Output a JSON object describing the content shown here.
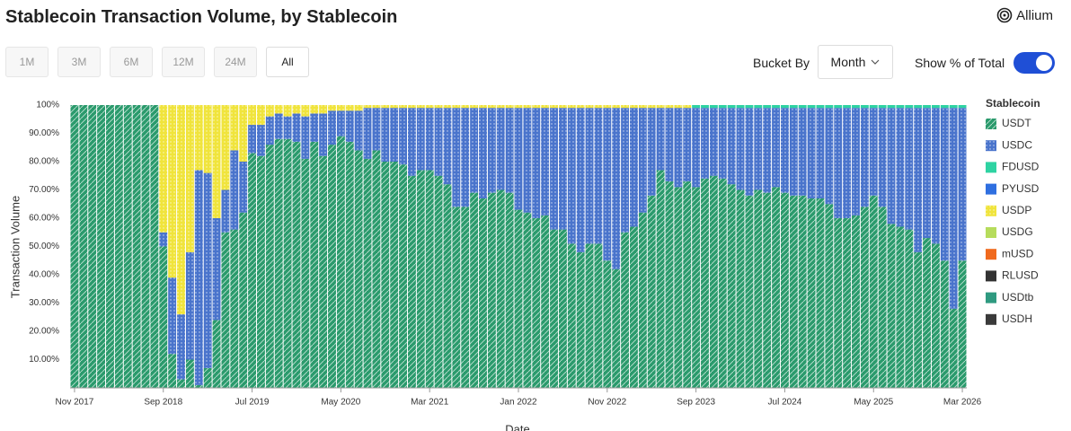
{
  "ui": {
    "title": "Stablecoin Transaction Volume, by Stablecoin",
    "brand": "Allium",
    "ranges": [
      {
        "label": "1M",
        "selected": false
      },
      {
        "label": "3M",
        "selected": false
      },
      {
        "label": "6M",
        "selected": false
      },
      {
        "label": "12M",
        "selected": false
      },
      {
        "label": "24M",
        "selected": false
      },
      {
        "label": "All",
        "selected": true
      }
    ],
    "bucket_label": "Bucket By",
    "bucket_value": "Month",
    "toggle_label": "Show % of Total",
    "toggle_on": true
  },
  "chart_data": {
    "type": "stacked_bar",
    "xlabel": "Date",
    "ylabel": "Transaction Volume",
    "legend_title": "Stablecoin",
    "legend": "right",
    "categories": [
      "Nov 2017",
      null,
      null,
      null,
      null,
      null,
      null,
      null,
      null,
      null,
      "Sep 2018",
      null,
      null,
      null,
      null,
      null,
      null,
      null,
      null,
      null,
      "Jul 2019",
      null,
      null,
      null,
      null,
      null,
      null,
      null,
      null,
      null,
      "May 2020",
      null,
      null,
      null,
      null,
      null,
      null,
      null,
      null,
      null,
      "Mar 2021",
      null,
      null,
      null,
      null,
      null,
      null,
      null,
      null,
      null,
      "Jan 2022",
      null,
      null,
      null,
      null,
      null,
      null,
      null,
      null,
      null,
      "Nov 2022",
      null,
      null,
      null,
      null,
      null,
      null,
      null,
      null,
      null,
      "Sep 2023",
      null,
      null,
      null,
      null,
      null,
      null,
      null,
      null,
      null,
      "Jul 2024",
      null,
      null,
      null,
      null,
      null,
      null,
      null,
      null,
      null,
      "May 2025",
      null,
      null,
      null,
      null,
      null,
      null,
      null,
      null,
      null,
      "Mar 2026"
    ],
    "ylim": [
      0,
      100
    ],
    "yticks": [
      {
        "value": 10,
        "label": "10.00%"
      },
      {
        "value": 20,
        "label": "20.00%"
      },
      {
        "value": 30,
        "label": "30.00%"
      },
      {
        "value": 40,
        "label": "40.00%"
      },
      {
        "value": 50,
        "label": "50.00%"
      },
      {
        "value": 60,
        "label": "60.00%"
      },
      {
        "value": 70,
        "label": "70.00%"
      },
      {
        "value": 80,
        "label": "80.00%"
      },
      {
        "value": 90,
        "label": "90.00%"
      },
      {
        "value": 100,
        "label": "100%"
      }
    ],
    "series": [
      {
        "name": "USDT",
        "color": "#2a9a6c",
        "values": [
          100,
          100,
          100,
          100,
          100,
          100,
          100,
          100,
          100,
          100,
          50,
          12,
          3,
          10,
          1,
          7,
          24,
          55,
          56,
          62,
          83,
          82,
          86,
          88,
          88,
          87,
          81,
          87,
          82,
          86,
          89,
          87,
          84,
          81,
          84,
          80,
          80,
          79,
          75,
          77,
          77,
          75,
          72,
          64,
          64,
          69,
          67,
          69,
          70,
          69,
          63,
          62,
          60,
          61,
          56,
          56,
          51,
          48,
          51,
          51,
          45,
          42,
          55,
          57,
          62,
          68,
          77,
          73,
          71,
          73,
          71,
          74,
          75,
          74,
          72,
          70,
          68,
          70,
          69,
          71,
          69,
          68,
          68,
          67,
          67,
          65,
          60,
          60,
          61,
          64,
          68,
          64,
          58,
          57,
          56,
          48,
          53,
          51,
          45,
          28,
          45
        ]
      },
      {
        "name": "USDC",
        "color": "#4a74cc",
        "values": [
          0,
          0,
          0,
          0,
          0,
          0,
          0,
          0,
          0,
          0,
          5,
          27,
          23,
          38,
          76,
          69,
          36,
          15,
          28,
          18,
          10,
          11,
          10,
          9,
          8,
          10,
          15,
          10,
          15,
          12,
          9,
          11,
          14,
          18,
          15,
          19,
          19,
          20,
          24,
          22,
          22,
          24,
          27,
          35,
          35,
          30,
          32,
          30,
          29,
          30,
          36,
          37,
          39,
          38,
          43,
          43,
          48,
          51,
          48,
          48,
          54,
          57,
          44,
          42,
          37,
          31,
          22,
          26,
          28,
          26,
          28,
          25,
          24,
          25,
          27,
          29,
          31,
          29,
          30,
          28,
          30,
          31,
          31,
          32,
          32,
          34,
          39,
          39,
          38,
          35,
          31,
          35,
          41,
          42,
          43,
          51,
          46,
          48,
          54,
          71,
          54
        ]
      },
      {
        "name": "FDUSD",
        "color": "#2ed3a2",
        "values": [
          0,
          0,
          0,
          0,
          0,
          0,
          0,
          0,
          0,
          0,
          0,
          0,
          0,
          0,
          0,
          0,
          0,
          0,
          0,
          0,
          0,
          0,
          0,
          0,
          0,
          0,
          0,
          0,
          0,
          0,
          0,
          0,
          0,
          0,
          0,
          0,
          0,
          0,
          0,
          0,
          0,
          0,
          0,
          0,
          0,
          0,
          0,
          0,
          0,
          0,
          0,
          0,
          0,
          0,
          0,
          0,
          0,
          0,
          0,
          0,
          0,
          0,
          0,
          0,
          0,
          0,
          0,
          0,
          0,
          0,
          1,
          1,
          1,
          1,
          1,
          1,
          1,
          1,
          1,
          1,
          1,
          1,
          1,
          1,
          1,
          1,
          1,
          1,
          1,
          1,
          1,
          1,
          1,
          1,
          1,
          1,
          1,
          1,
          1,
          1,
          1
        ]
      },
      {
        "name": "PYUSD",
        "color": "#2f6fe0",
        "values": [
          0,
          0,
          0,
          0,
          0,
          0,
          0,
          0,
          0,
          0,
          0,
          0,
          0,
          0,
          0,
          0,
          0,
          0,
          0,
          0,
          0,
          0,
          0,
          0,
          0,
          0,
          0,
          0,
          0,
          0,
          0,
          0,
          0,
          0,
          0,
          0,
          0,
          0,
          0,
          0,
          0,
          0,
          0,
          0,
          0,
          0,
          0,
          0,
          0,
          0,
          0,
          0,
          0,
          0,
          0,
          0,
          0,
          0,
          0,
          0,
          0,
          0,
          0,
          0,
          0,
          0,
          0,
          0,
          0,
          0,
          0,
          0,
          0,
          0,
          0,
          0,
          0,
          0,
          0,
          0,
          0,
          0,
          0,
          0,
          0,
          0,
          0,
          0,
          0,
          0,
          0,
          0,
          0,
          0,
          0,
          0,
          0,
          0,
          0,
          0,
          0
        ]
      },
      {
        "name": "USDP",
        "color": "#f0e43c",
        "values": [
          0,
          0,
          0,
          0,
          0,
          0,
          0,
          0,
          0,
          0,
          45,
          61,
          74,
          52,
          23,
          24,
          40,
          30,
          16,
          20,
          7,
          7,
          4,
          3,
          4,
          3,
          4,
          3,
          3,
          2,
          2,
          2,
          2,
          1,
          1,
          1,
          1,
          1,
          1,
          1,
          1,
          1,
          1,
          1,
          1,
          1,
          1,
          1,
          1,
          1,
          1,
          1,
          1,
          1,
          1,
          1,
          1,
          1,
          1,
          1,
          1,
          1,
          1,
          1,
          1,
          1,
          1,
          1,
          1,
          1,
          0,
          0,
          0,
          0,
          0,
          0,
          0,
          0,
          0,
          0,
          0,
          0,
          0,
          0,
          0,
          0,
          0,
          0,
          0,
          0,
          0,
          0,
          0,
          0,
          0,
          0,
          0,
          0,
          0,
          0,
          0
        ]
      },
      {
        "name": "USDG",
        "color": "#b6dc5c",
        "values": [
          0,
          0,
          0,
          0,
          0,
          0,
          0,
          0,
          0,
          0,
          0,
          0,
          0,
          0,
          0,
          0,
          0,
          0,
          0,
          0,
          0,
          0,
          0,
          0,
          0,
          0,
          0,
          0,
          0,
          0,
          0,
          0,
          0,
          0,
          0,
          0,
          0,
          0,
          0,
          0,
          0,
          0,
          0,
          0,
          0,
          0,
          0,
          0,
          0,
          0,
          0,
          0,
          0,
          0,
          0,
          0,
          0,
          0,
          0,
          0,
          0,
          0,
          0,
          0,
          0,
          0,
          0,
          0,
          0,
          0,
          0,
          0,
          0,
          0,
          0,
          0,
          0,
          0,
          0,
          0,
          0,
          0,
          0,
          0,
          0,
          0,
          0,
          0,
          0,
          0,
          0,
          0,
          0,
          0,
          0,
          0,
          0,
          0,
          0,
          0,
          0
        ]
      },
      {
        "name": "mUSD",
        "color": "#f06a1e",
        "values": [
          0,
          0,
          0,
          0,
          0,
          0,
          0,
          0,
          0,
          0,
          0,
          0,
          0,
          0,
          0,
          0,
          0,
          0,
          0,
          0,
          0,
          0,
          0,
          0,
          0,
          0,
          0,
          0,
          0,
          0,
          0,
          0,
          0,
          0,
          0,
          0,
          0,
          0,
          0,
          0,
          0,
          0,
          0,
          0,
          0,
          0,
          0,
          0,
          0,
          0,
          0,
          0,
          0,
          0,
          0,
          0,
          0,
          0,
          0,
          0,
          0,
          0,
          0,
          0,
          0,
          0,
          0,
          0,
          0,
          0,
          0,
          0,
          0,
          0,
          0,
          0,
          0,
          0,
          0,
          0,
          0,
          0,
          0,
          0,
          0,
          0,
          0,
          0,
          0,
          0,
          0,
          0,
          0,
          0,
          0,
          0,
          0,
          0,
          0,
          0,
          0
        ]
      },
      {
        "name": "RLUSD",
        "color": "#333333",
        "values": [
          0,
          0,
          0,
          0,
          0,
          0,
          0,
          0,
          0,
          0,
          0,
          0,
          0,
          0,
          0,
          0,
          0,
          0,
          0,
          0,
          0,
          0,
          0,
          0,
          0,
          0,
          0,
          0,
          0,
          0,
          0,
          0,
          0,
          0,
          0,
          0,
          0,
          0,
          0,
          0,
          0,
          0,
          0,
          0,
          0,
          0,
          0,
          0,
          0,
          0,
          0,
          0,
          0,
          0,
          0,
          0,
          0,
          0,
          0,
          0,
          0,
          0,
          0,
          0,
          0,
          0,
          0,
          0,
          0,
          0,
          0,
          0,
          0,
          0,
          0,
          0,
          0,
          0,
          0,
          0,
          0,
          0,
          0,
          0,
          0,
          0,
          0,
          0,
          0,
          0,
          0,
          0,
          0,
          0,
          0,
          0,
          0,
          0,
          0,
          0,
          0
        ]
      },
      {
        "name": "USDtb",
        "color": "#2f9a80",
        "values": [
          0,
          0,
          0,
          0,
          0,
          0,
          0,
          0,
          0,
          0,
          0,
          0,
          0,
          0,
          0,
          0,
          0,
          0,
          0,
          0,
          0,
          0,
          0,
          0,
          0,
          0,
          0,
          0,
          0,
          0,
          0,
          0,
          0,
          0,
          0,
          0,
          0,
          0,
          0,
          0,
          0,
          0,
          0,
          0,
          0,
          0,
          0,
          0,
          0,
          0,
          0,
          0,
          0,
          0,
          0,
          0,
          0,
          0,
          0,
          0,
          0,
          0,
          0,
          0,
          0,
          0,
          0,
          0,
          0,
          0,
          0,
          0,
          0,
          0,
          0,
          0,
          0,
          0,
          0,
          0,
          0,
          0,
          0,
          0,
          0,
          0,
          0,
          0,
          0,
          0,
          0,
          0,
          0,
          0,
          0,
          0,
          0,
          0,
          0,
          0,
          0
        ]
      },
      {
        "name": "USDH",
        "color": "#3a3a3a",
        "values": [
          0,
          0,
          0,
          0,
          0,
          0,
          0,
          0,
          0,
          0,
          0,
          0,
          0,
          0,
          0,
          0,
          0,
          0,
          0,
          0,
          0,
          0,
          0,
          0,
          0,
          0,
          0,
          0,
          0,
          0,
          0,
          0,
          0,
          0,
          0,
          0,
          0,
          0,
          0,
          0,
          0,
          0,
          0,
          0,
          0,
          0,
          0,
          0,
          0,
          0,
          0,
          0,
          0,
          0,
          0,
          0,
          0,
          0,
          0,
          0,
          0,
          0,
          0,
          0,
          0,
          0,
          0,
          0,
          0,
          0,
          0,
          0,
          0,
          0,
          0,
          0,
          0,
          0,
          0,
          0,
          0,
          0,
          0,
          0,
          0,
          0,
          0,
          0,
          0,
          0,
          0,
          0,
          0,
          0,
          0,
          0,
          0,
          0,
          0,
          0,
          0
        ]
      }
    ]
  }
}
